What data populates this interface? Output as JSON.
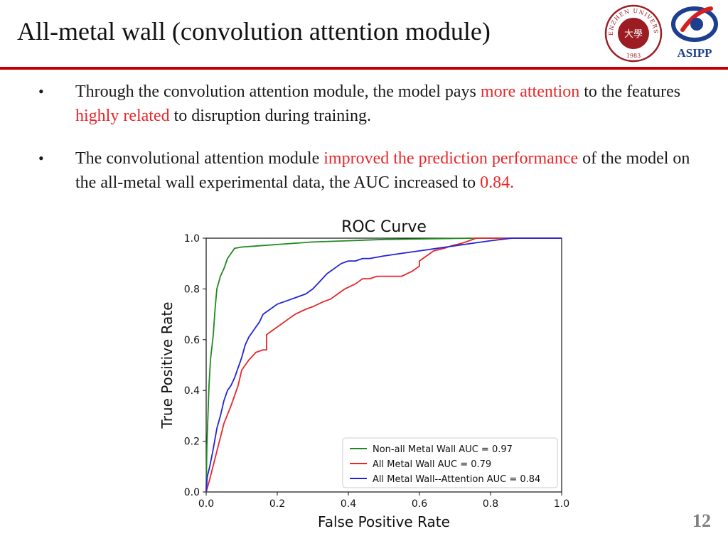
{
  "slide": {
    "title": "All-metal wall (convolution attention module)",
    "page_number": "12",
    "accent_color": "#c00000"
  },
  "logos": {
    "left": {
      "icon": "shenzhen-university-seal",
      "top_text": "SHENZHEN UNIVERSITY",
      "center_text": "大學",
      "year": "1983"
    },
    "right": {
      "icon": "asipp-logo",
      "text": "ASIPP"
    }
  },
  "bullets": [
    {
      "marker": "•",
      "segments": [
        {
          "text": "Through the convolution attention module, the model pays ",
          "highlight": false
        },
        {
          "text": "more attention",
          "highlight": true
        },
        {
          "text": " to the features ",
          "highlight": false
        },
        {
          "text": "highly related",
          "highlight": true
        },
        {
          "text": " to disruption during training.",
          "highlight": false
        }
      ]
    },
    {
      "marker": "•",
      "segments": [
        {
          "text": " The convolutional attention module ",
          "highlight": false
        },
        {
          "text": "improved the prediction performance",
          "highlight": true
        },
        {
          "text": " of the model on the all-metal wall experimental data, the AUC increased to ",
          "highlight": false
        },
        {
          "text": "0.84.",
          "highlight": true
        }
      ]
    }
  ],
  "chart_data": {
    "type": "line",
    "title": "ROC Curve",
    "xlabel": "False Positive Rate",
    "ylabel": "True Positive Rate",
    "xlim": [
      0,
      1
    ],
    "ylim": [
      0,
      1
    ],
    "xticks": [
      "0.0",
      "0.2",
      "0.4",
      "0.6",
      "0.8",
      "1.0"
    ],
    "yticks": [
      "0.0",
      "0.2",
      "0.4",
      "0.6",
      "0.8",
      "1.0"
    ],
    "legend_position": "lower-right",
    "series": [
      {
        "name": "Non-all Metal Wall AUC = 0.97",
        "color": "#1f8a1f",
        "x": [
          0,
          0.002,
          0.005,
          0.008,
          0.012,
          0.02,
          0.025,
          0.03,
          0.04,
          0.05,
          0.06,
          0.07,
          0.08,
          0.1,
          0.15,
          0.2,
          0.25,
          0.3,
          0.4,
          0.5,
          0.6,
          0.7,
          0.78,
          1.0
        ],
        "y": [
          0,
          0.18,
          0.3,
          0.42,
          0.52,
          0.62,
          0.72,
          0.8,
          0.85,
          0.88,
          0.92,
          0.94,
          0.96,
          0.965,
          0.97,
          0.975,
          0.98,
          0.985,
          0.99,
          0.995,
          0.997,
          0.999,
          1.0,
          1.0
        ]
      },
      {
        "name": "All Metal Wall AUC = 0.79",
        "color": "#e8262a",
        "x": [
          0,
          0.01,
          0.03,
          0.05,
          0.07,
          0.09,
          0.1,
          0.12,
          0.14,
          0.16,
          0.17,
          0.17,
          0.19,
          0.21,
          0.23,
          0.25,
          0.28,
          0.3,
          0.33,
          0.35,
          0.37,
          0.39,
          0.42,
          0.44,
          0.46,
          0.48,
          0.5,
          0.52,
          0.55,
          0.58,
          0.6,
          0.6,
          0.62,
          0.64,
          0.67,
          0.69,
          0.72,
          0.74,
          0.76,
          0.78,
          1.0
        ],
        "y": [
          0,
          0.05,
          0.16,
          0.27,
          0.34,
          0.42,
          0.48,
          0.52,
          0.55,
          0.56,
          0.56,
          0.62,
          0.64,
          0.66,
          0.68,
          0.7,
          0.72,
          0.73,
          0.75,
          0.76,
          0.78,
          0.8,
          0.82,
          0.84,
          0.84,
          0.85,
          0.85,
          0.85,
          0.85,
          0.87,
          0.89,
          0.91,
          0.93,
          0.95,
          0.96,
          0.97,
          0.98,
          0.99,
          1.0,
          1.0,
          1.0
        ]
      },
      {
        "name": "All Metal Wall--Attention AUC = 0.84",
        "color": "#2323d8",
        "x": [
          0,
          0.003,
          0.01,
          0.02,
          0.03,
          0.04,
          0.05,
          0.06,
          0.07,
          0.08,
          0.09,
          0.1,
          0.11,
          0.12,
          0.13,
          0.14,
          0.15,
          0.16,
          0.17,
          0.18,
          0.2,
          0.22,
          0.24,
          0.26,
          0.28,
          0.3,
          0.32,
          0.34,
          0.36,
          0.38,
          0.4,
          0.42,
          0.44,
          0.46,
          0.5,
          0.55,
          0.6,
          0.65,
          0.7,
          0.75,
          0.8,
          0.86,
          1.0
        ],
        "y": [
          0,
          0.06,
          0.1,
          0.17,
          0.25,
          0.3,
          0.36,
          0.4,
          0.42,
          0.45,
          0.49,
          0.53,
          0.58,
          0.61,
          0.63,
          0.65,
          0.67,
          0.7,
          0.71,
          0.72,
          0.74,
          0.75,
          0.76,
          0.77,
          0.78,
          0.8,
          0.83,
          0.86,
          0.88,
          0.9,
          0.91,
          0.91,
          0.92,
          0.92,
          0.93,
          0.94,
          0.95,
          0.96,
          0.97,
          0.98,
          0.99,
          1.0,
          1.0
        ]
      }
    ]
  }
}
